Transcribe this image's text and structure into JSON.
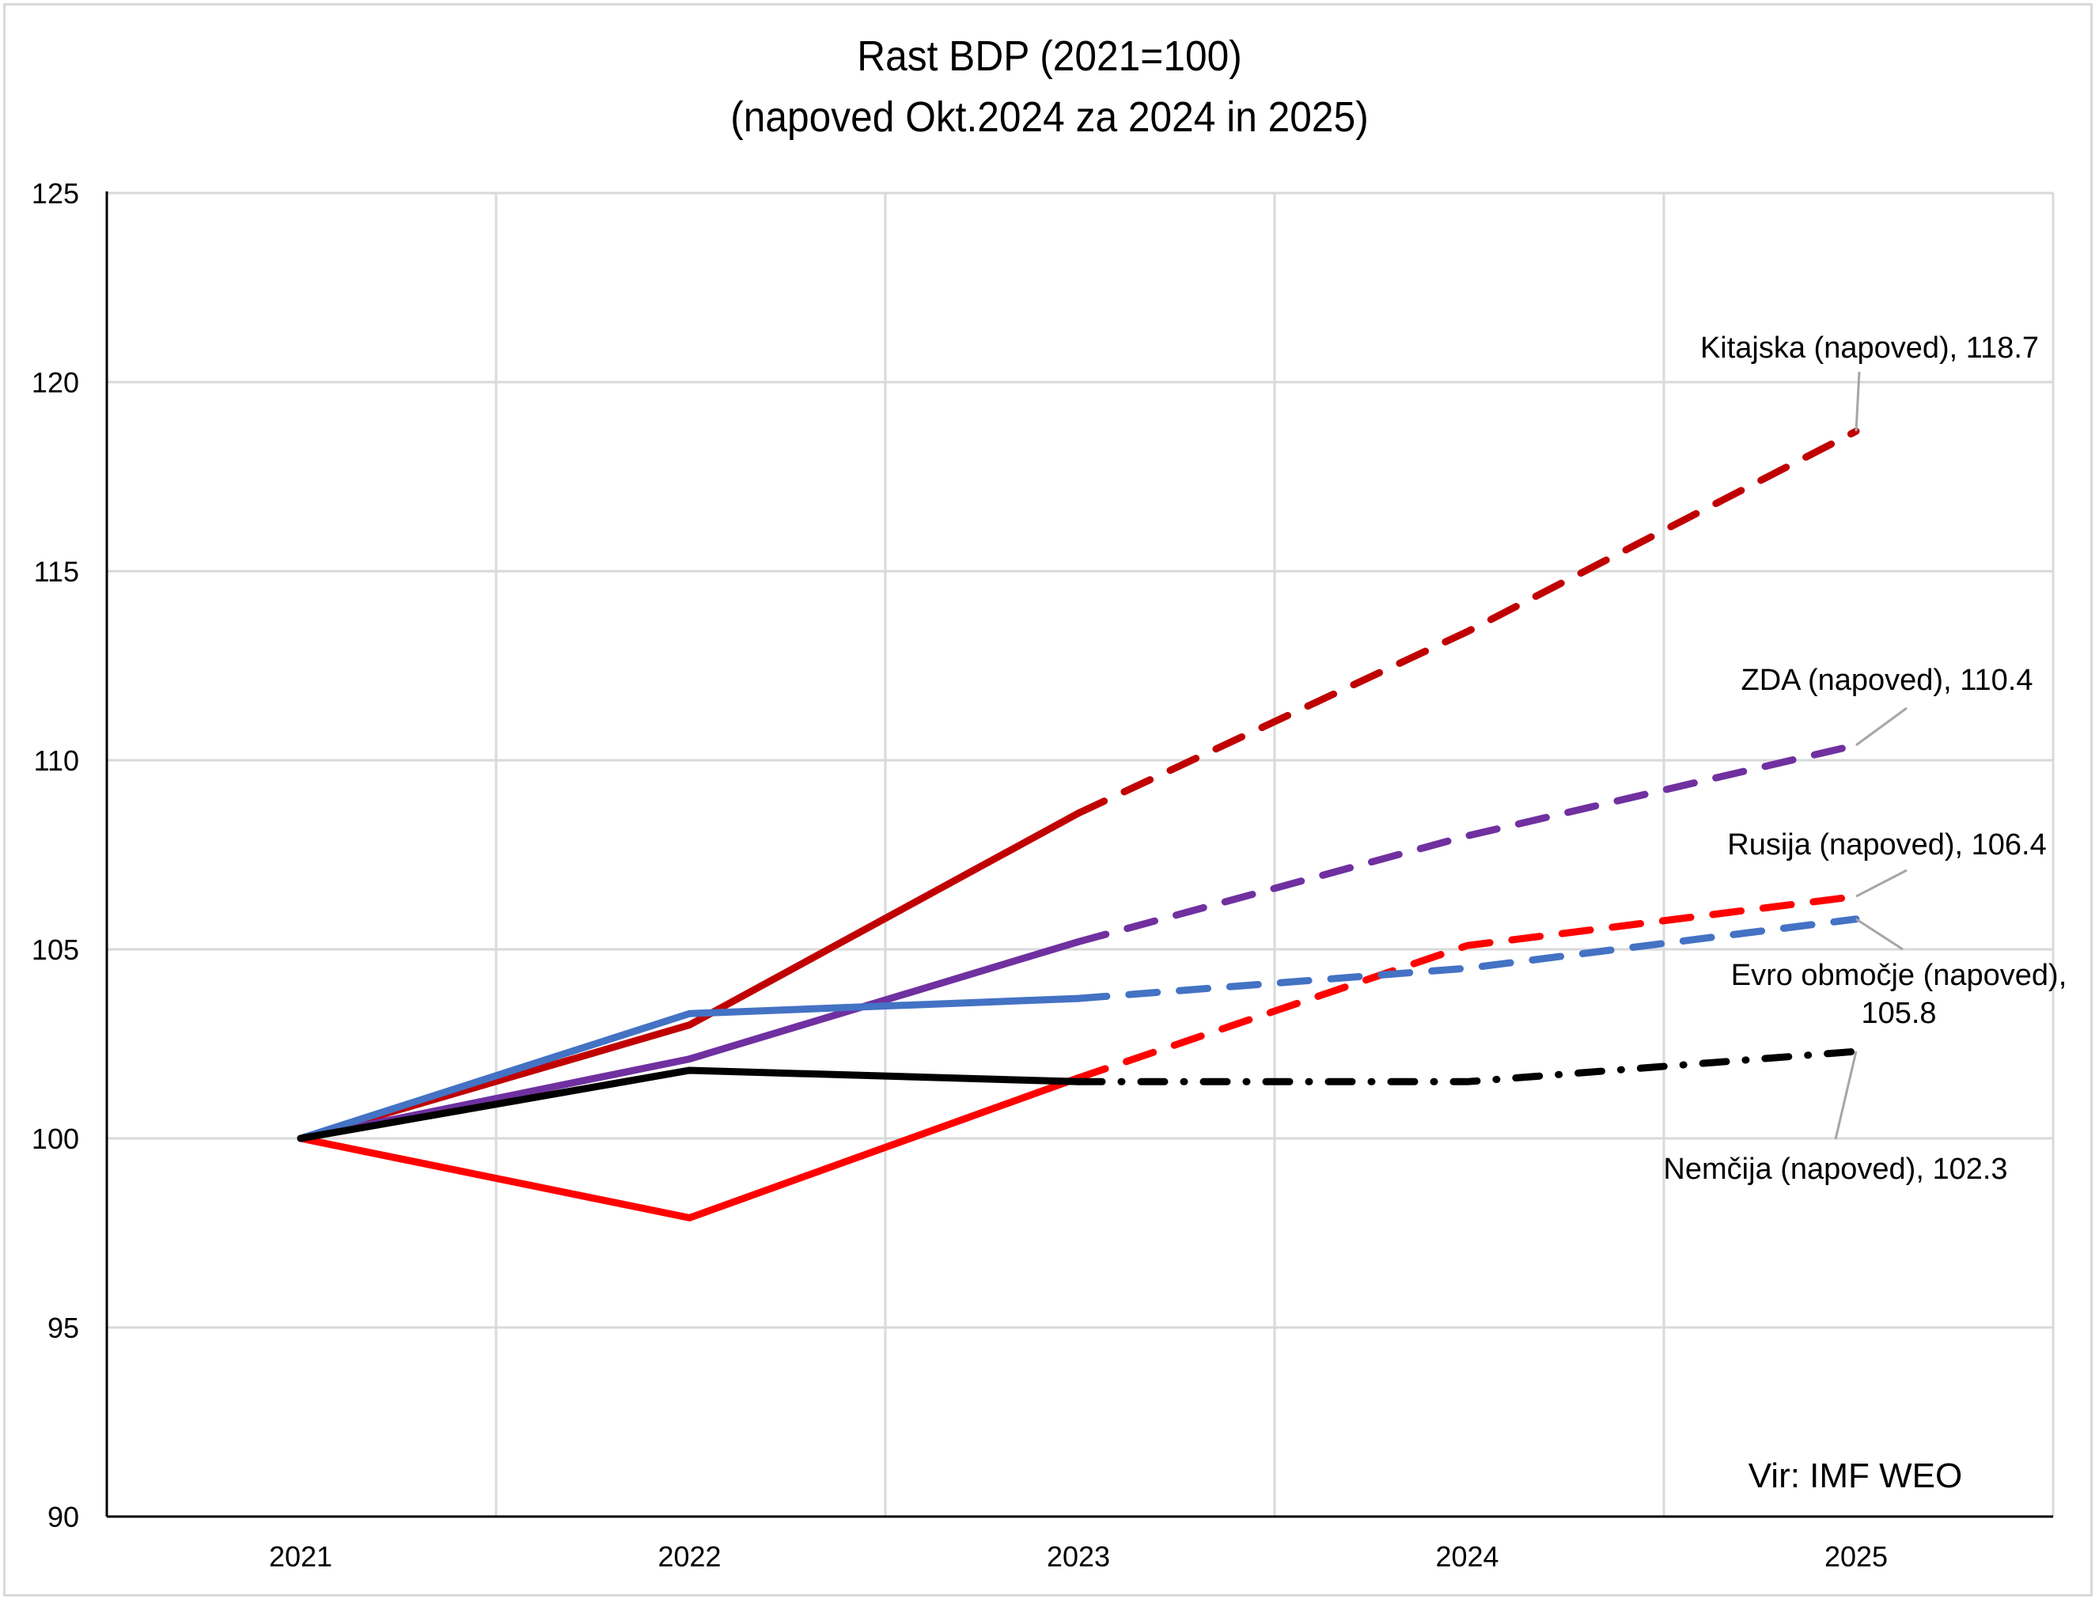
{
  "chart_data": {
    "type": "line",
    "title": "Rast BDP (2021=100)",
    "subtitle": "(napoved Okt.2024 za 2024 in 2025)",
    "xlabel": "",
    "ylabel": "",
    "categories": [
      "2021",
      "2022",
      "2023",
      "2024",
      "2025"
    ],
    "ylim": [
      90,
      125
    ],
    "yticks": [
      90,
      95,
      100,
      105,
      110,
      115,
      120,
      125
    ],
    "grid": true,
    "legend": "none",
    "forecast_from": "2023",
    "source_note": "Vir: IMF WEO",
    "series": [
      {
        "name": "Kitajska",
        "color": "#C00000",
        "style": "dashed",
        "values": [
          100,
          103.0,
          108.6,
          113.4,
          118.7
        ],
        "label": "Kitajska (napoved), 118.7"
      },
      {
        "name": "ZDA",
        "color": "#7030A0",
        "style": "dashed",
        "values": [
          100,
          102.1,
          105.2,
          108.0,
          110.4
        ],
        "label": "ZDA (napoved), 110.4"
      },
      {
        "name": "Rusija",
        "color": "#FF0000",
        "style": "dashed",
        "values": [
          100,
          97.9,
          101.6,
          105.1,
          106.4
        ],
        "label": "Rusija (napoved), 106.4"
      },
      {
        "name": "Evro območje",
        "color": "#4472C4",
        "style": "dashed",
        "values": [
          100,
          103.3,
          103.7,
          104.5,
          105.8
        ],
        "label": [
          "Evro območje (napoved),",
          "105.8"
        ]
      },
      {
        "name": "Nemčija",
        "color": "#000000",
        "style": "dashdot",
        "values": [
          100,
          101.8,
          101.5,
          101.5,
          102.3
        ],
        "label": "Nemčija (napoved), 102.3"
      }
    ]
  }
}
